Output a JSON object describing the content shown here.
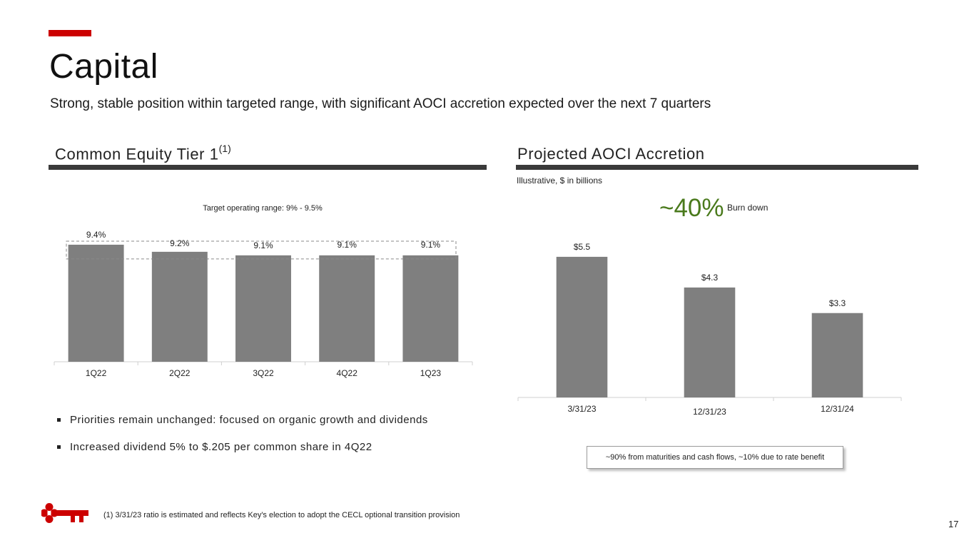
{
  "header": {
    "title": "Capital",
    "subtitle": "Strong, stable position within targeted range, with significant AOCI accretion expected over the next 7 quarters"
  },
  "left_section": {
    "title": "Common Equity Tier 1",
    "title_sup": "(1)",
    "bullets": [
      "Priorities remain unchanged: focused on organic growth and dividends",
      "Increased dividend 5% to $.205 per common share in 4Q22"
    ]
  },
  "right_section": {
    "title": "Projected AOCI Accretion",
    "note": "Illustrative, $ in billions",
    "burn_pct": "~40%",
    "burn_label": "Burn down",
    "callout": "~90% from maturities and cash flows, ~10% due to rate benefit"
  },
  "footer": {
    "footnote": "(1) 3/31/23 ratio is estimated and reflects Key's election to adopt the CECL optional transition provision",
    "page_number": "17",
    "logo_icon": "key-logo-icon"
  },
  "colors": {
    "accent": "#cc0000",
    "bar": "#7f7f7f",
    "green": "#4a7a1c",
    "rule": "#3a3a3a"
  },
  "chart_data": [
    {
      "type": "bar",
      "title": "Common Equity Tier 1",
      "categories": [
        "1Q22",
        "2Q22",
        "3Q22",
        "4Q22",
        "1Q23"
      ],
      "values": [
        9.4,
        9.2,
        9.1,
        9.1,
        9.1
      ],
      "data_labels": [
        "9.4%",
        "9.2%",
        "9.1%",
        "9.1%",
        "9.1%"
      ],
      "annotation": "Target operating range: 9% - 9.5%",
      "target_range": [
        9.0,
        9.5
      ],
      "ylim": [
        6.1,
        9.6
      ],
      "xlabel": "",
      "ylabel": ""
    },
    {
      "type": "bar",
      "title": "Projected AOCI Accretion",
      "categories": [
        "3/31/23",
        "12/31/23",
        "12/31/24"
      ],
      "values": [
        5.5,
        4.3,
        3.3
      ],
      "data_labels": [
        "$5.5",
        "$4.3",
        "$3.3"
      ],
      "ylim": [
        0,
        6.0
      ],
      "xlabel": "",
      "ylabel": ""
    }
  ]
}
